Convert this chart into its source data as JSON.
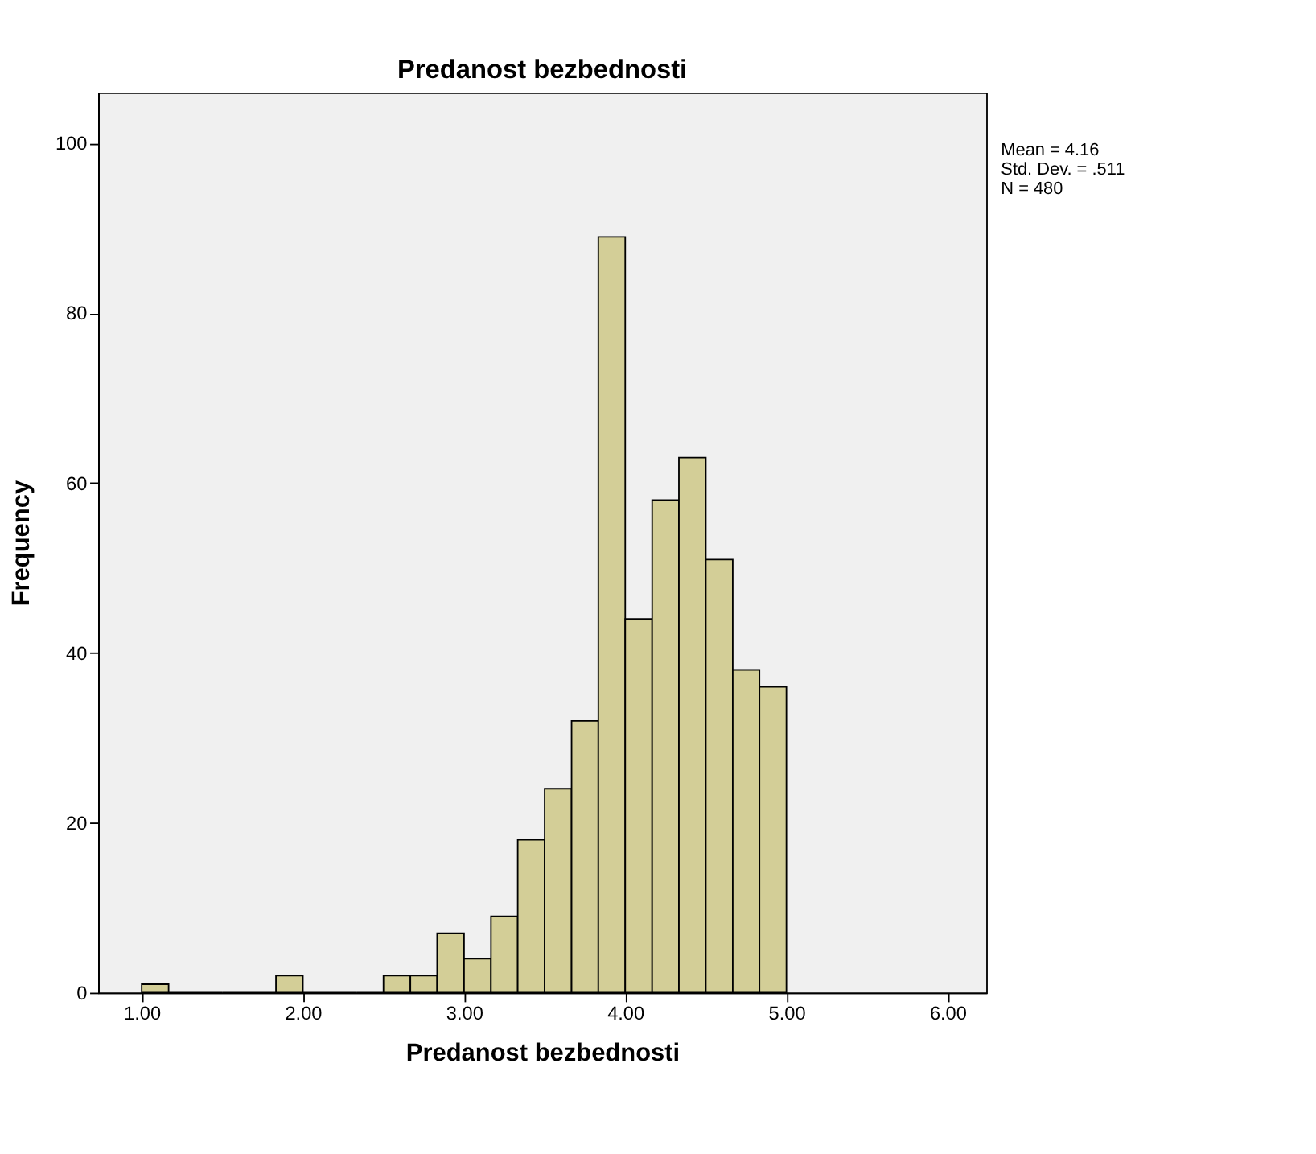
{
  "chart_data": {
    "type": "histogram",
    "title": "Predanost bezbednosti",
    "xlabel": "Predanost bezbednosti",
    "ylabel": "Frequency",
    "bins": [
      1,
      1.167,
      1.333,
      1.5,
      1.667,
      1.833,
      2,
      2.167,
      2.333,
      2.5,
      2.667,
      2.833,
      3,
      3.167,
      3.333,
      3.5,
      3.667,
      3.833,
      4,
      4.167,
      4.333,
      4.5,
      4.667,
      4.833,
      5
    ],
    "values": [
      1,
      0,
      0,
      0,
      0,
      2,
      0,
      0,
      0,
      2,
      2,
      7,
      4,
      9,
      18,
      24,
      32,
      89,
      44,
      58,
      63,
      51,
      38,
      36
    ],
    "color": "#d3ce97",
    "xlim": [
      0.73,
      6.24
    ],
    "ylim": [
      0,
      106
    ],
    "xticks": [
      {
        "value": 1,
        "label": "1.00"
      },
      {
        "value": 2,
        "label": "2.00"
      },
      {
        "value": 3,
        "label": "3.00"
      },
      {
        "value": 4,
        "label": "4.00"
      },
      {
        "value": 5,
        "label": "5.00"
      },
      {
        "value": 6,
        "label": "6.00"
      }
    ],
    "yticks": [
      0,
      20,
      40,
      60,
      80,
      100
    ],
    "grid": false,
    "annotations": [
      "Mean = 4.16",
      "Std. Dev. = .511",
      "N = 480"
    ]
  }
}
